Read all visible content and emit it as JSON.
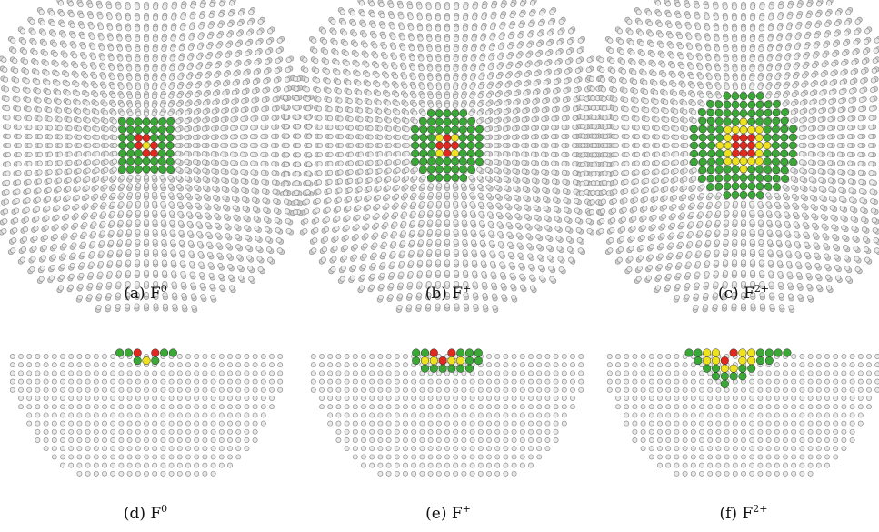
{
  "figure": {
    "colors": {
      "background_atom": "#d4d4d4",
      "background_atom_edge": "#8e8e8e",
      "green": "#3aa835",
      "yellow": "#eee21e",
      "red": "#e0281f"
    },
    "panels": [
      {
        "id": "a",
        "view": "top",
        "charge": 0,
        "caption_prefix": "(a) F",
        "caption_sup": "0"
      },
      {
        "id": "b",
        "view": "top",
        "charge": 1,
        "caption_prefix": "(b) F",
        "caption_sup": "+"
      },
      {
        "id": "c",
        "view": "top",
        "charge": 2,
        "caption_prefix": "(c) F",
        "caption_sup": "2+"
      },
      {
        "id": "d",
        "view": "side",
        "charge": 0,
        "caption_prefix": "(d) F",
        "caption_sup": "0"
      },
      {
        "id": "e",
        "view": "side",
        "charge": 1,
        "caption_prefix": "(e) F",
        "caption_sup": "+"
      },
      {
        "id": "f",
        "view": "side",
        "charge": 2,
        "caption_prefix": "(f) F",
        "caption_sup": "2+"
      }
    ]
  }
}
